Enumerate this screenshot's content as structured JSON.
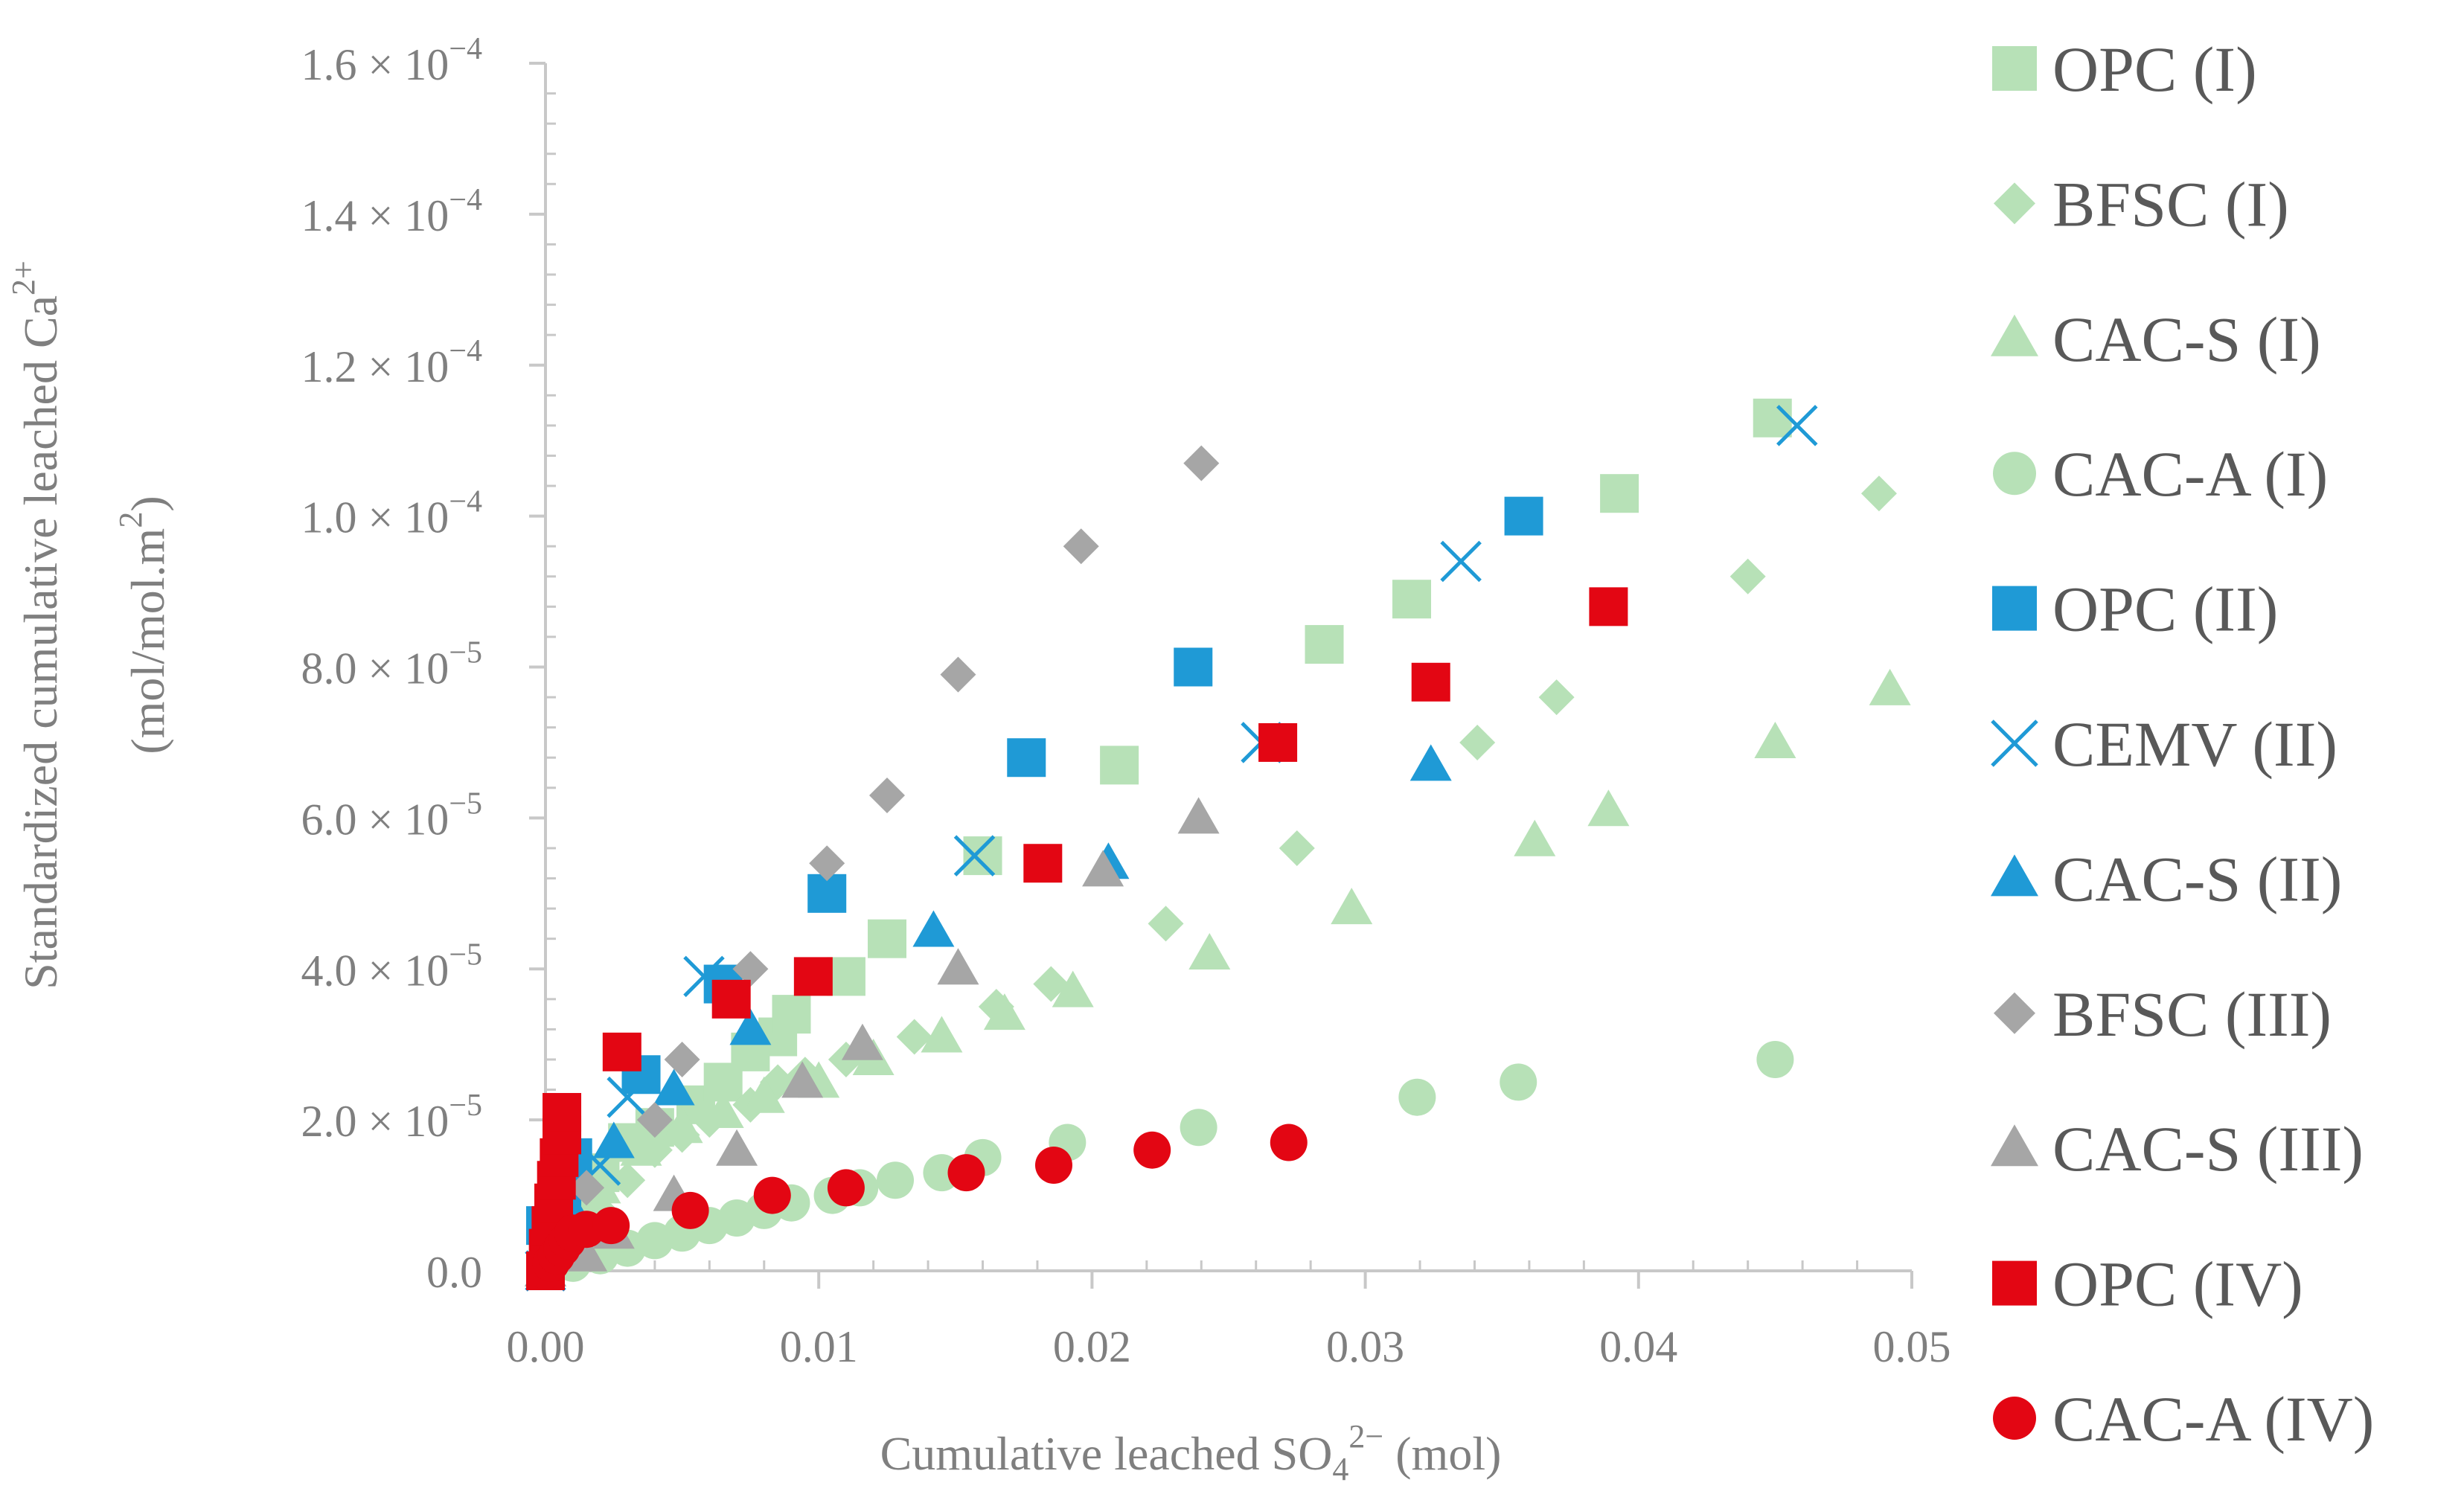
{
  "chart_data": {
    "type": "scatter",
    "title": "",
    "xlabel": "Cumulative leached SO4²⁻ (mol)",
    "xlabel_parts": {
      "main": "Cumulative leached SO",
      "sub": "4",
      "sup": "2−",
      "tail": " (mol)"
    },
    "ylabel_line1": "Standardized cumulative leached Ca²⁺",
    "ylabel_line1_parts": {
      "main": "Standardized cumulative leached Ca",
      "sup": "2+"
    },
    "ylabel_line2": "(mol/mol.m²)",
    "ylabel_line2_parts": {
      "main": "(mol/mol.m",
      "sup": "2",
      "tail": ")"
    },
    "xlim": [
      0,
      0.05
    ],
    "ylim": [
      0,
      0.00016
    ],
    "x_ticks": [
      {
        "value": 0.0,
        "label": "0.00"
      },
      {
        "value": 0.01,
        "label": "0.01"
      },
      {
        "value": 0.02,
        "label": "0.02"
      },
      {
        "value": 0.03,
        "label": "0.03"
      },
      {
        "value": 0.04,
        "label": "0.04"
      },
      {
        "value": 0.05,
        "label": "0.05"
      }
    ],
    "y_ticks": [
      {
        "value": 0,
        "mantissa": "0.0",
        "exp": ""
      },
      {
        "value": 2e-05,
        "mantissa": "2.0 × 10",
        "exp": "−5"
      },
      {
        "value": 4e-05,
        "mantissa": "4.0 × 10",
        "exp": "−5"
      },
      {
        "value": 6e-05,
        "mantissa": "6.0 × 10",
        "exp": "−5"
      },
      {
        "value": 8e-05,
        "mantissa": "8.0 × 10",
        "exp": "−5"
      },
      {
        "value": 0.0001,
        "mantissa": "1.0 × 10",
        "exp": "−4"
      },
      {
        "value": 0.00012,
        "mantissa": "1.2 × 10",
        "exp": "−4"
      },
      {
        "value": 0.00014,
        "mantissa": "1.4 × 10",
        "exp": "−4"
      },
      {
        "value": 0.00016,
        "mantissa": "1.6 × 10",
        "exp": "−4"
      }
    ],
    "grid": false,
    "legend_position": "right",
    "series": [
      {
        "name": "OPC (I)",
        "marker": "square",
        "color": "#b7e1b7",
        "points": [
          [
            0,
            0
          ],
          [
            0.0003,
            4e-06
          ],
          [
            0.001,
            8e-06
          ],
          [
            0.002,
            1.3e-05
          ],
          [
            0.003,
            1.7e-05
          ],
          [
            0.004,
            1.9e-05
          ],
          [
            0.0055,
            2.2e-05
          ],
          [
            0.0065,
            2.5e-05
          ],
          [
            0.0075,
            2.9e-05
          ],
          [
            0.0085,
            3.1e-05
          ],
          [
            0.009,
            3.4e-05
          ],
          [
            0.011,
            3.9e-05
          ],
          [
            0.0125,
            4.4e-05
          ],
          [
            0.016,
            5.5e-05
          ],
          [
            0.021,
            6.7e-05
          ],
          [
            0.0285,
            8.3e-05
          ],
          [
            0.0317,
            8.9e-05
          ],
          [
            0.0393,
            0.000103
          ],
          [
            0.0449,
            0.000113
          ]
        ]
      },
      {
        "name": "BFSC (I)",
        "marker": "diamond",
        "color": "#b7e1b7",
        "points": [
          [
            0,
            0
          ],
          [
            0.001,
            4e-06
          ],
          [
            0.002,
            8e-06
          ],
          [
            0.003,
            1.2e-05
          ],
          [
            0.004,
            1.6e-05
          ],
          [
            0.005,
            1.8e-05
          ],
          [
            0.006,
            2e-05
          ],
          [
            0.0075,
            2.2e-05
          ],
          [
            0.0085,
            2.5e-05
          ],
          [
            0.0095,
            2.6e-05
          ],
          [
            0.011,
            2.8e-05
          ],
          [
            0.0135,
            3.1e-05
          ],
          [
            0.0165,
            3.5e-05
          ],
          [
            0.0185,
            3.8e-05
          ],
          [
            0.0227,
            4.6e-05
          ],
          [
            0.0275,
            5.6e-05
          ],
          [
            0.0341,
            7e-05
          ],
          [
            0.037,
            7.6e-05
          ],
          [
            0.044,
            9.2e-05
          ],
          [
            0.0488,
            0.000103
          ]
        ]
      },
      {
        "name": "CAC-S (I)",
        "marker": "triangle",
        "color": "#b7e1b7",
        "points": [
          [
            0,
            0
          ],
          [
            0.001,
            6e-06
          ],
          [
            0.002,
            1.1e-05
          ],
          [
            0.0035,
            1.6e-05
          ],
          [
            0.005,
            1.9e-05
          ],
          [
            0.0065,
            2.1e-05
          ],
          [
            0.008,
            2.3e-05
          ],
          [
            0.01,
            2.5e-05
          ],
          [
            0.012,
            2.8e-05
          ],
          [
            0.0145,
            3.1e-05
          ],
          [
            0.0168,
            3.4e-05
          ],
          [
            0.0193,
            3.7e-05
          ],
          [
            0.0243,
            4.2e-05
          ],
          [
            0.0295,
            4.8e-05
          ],
          [
            0.0362,
            5.7e-05
          ],
          [
            0.0389,
            6.1e-05
          ],
          [
            0.045,
            7e-05
          ],
          [
            0.0492,
            7.7e-05
          ]
        ]
      },
      {
        "name": "CAC-A (I)",
        "marker": "circle",
        "color": "#b7e1b7",
        "points": [
          [
            0,
            0
          ],
          [
            0.001,
            1e-06
          ],
          [
            0.002,
            2e-06
          ],
          [
            0.003,
            3e-06
          ],
          [
            0.004,
            4e-06
          ],
          [
            0.005,
            5e-06
          ],
          [
            0.006,
            6e-06
          ],
          [
            0.007,
            7e-06
          ],
          [
            0.008,
            8e-06
          ],
          [
            0.009,
            9e-06
          ],
          [
            0.0105,
            1e-05
          ],
          [
            0.0115,
            1.1e-05
          ],
          [
            0.0128,
            1.2e-05
          ],
          [
            0.0145,
            1.3e-05
          ],
          [
            0.016,
            1.5e-05
          ],
          [
            0.0191,
            1.7e-05
          ],
          [
            0.0239,
            1.9e-05
          ],
          [
            0.0319,
            2.3e-05
          ],
          [
            0.0356,
            2.5e-05
          ],
          [
            0.045,
            2.8e-05
          ]
        ]
      },
      {
        "name": "OPC (II)",
        "marker": "square",
        "color": "#1f9ad6",
        "points": [
          [
            0,
            6e-06
          ],
          [
            0.0003,
            8e-06
          ],
          [
            0.0006,
            1.1e-05
          ],
          [
            0.001,
            1.5e-05
          ],
          [
            0.0035,
            2.6e-05
          ],
          [
            0.0065,
            3.8e-05
          ],
          [
            0.0103,
            5e-05
          ],
          [
            0.0176,
            6.8e-05
          ],
          [
            0.0237,
            8e-05
          ],
          [
            0.0358,
            0.0001
          ]
        ]
      },
      {
        "name": "CEMV (II)",
        "marker": "x",
        "color": "#1f9ad6",
        "points": [
          [
            0,
            0
          ],
          [
            0.0003,
            3e-06
          ],
          [
            0.0008,
            8e-06
          ],
          [
            0.002,
            1.4e-05
          ],
          [
            0.003,
            2.3e-05
          ],
          [
            0.0058,
            3.9e-05
          ],
          [
            0.0157,
            5.5e-05
          ],
          [
            0.0262,
            7e-05
          ],
          [
            0.0335,
            9.4e-05
          ],
          [
            0.0458,
            0.000112
          ]
        ]
      },
      {
        "name": "CAC-S (II)",
        "marker": "triangle",
        "color": "#1f9ad6",
        "points": [
          [
            0,
            0
          ],
          [
            0.0008,
            9e-06
          ],
          [
            0.0025,
            1.7e-05
          ],
          [
            0.0047,
            2.4e-05
          ],
          [
            0.0075,
            3.2e-05
          ],
          [
            0.0142,
            4.5e-05
          ],
          [
            0.0206,
            5.4e-05
          ],
          [
            0.0324,
            6.7e-05
          ]
        ]
      },
      {
        "name": "BFSC (III)",
        "marker": "diamond",
        "color": "#a6a6a6",
        "points": [
          [
            0,
            0
          ],
          [
            0.0005,
            5e-06
          ],
          [
            0.0015,
            1.1e-05
          ],
          [
            0.004,
            2e-05
          ],
          [
            0.005,
            2.8e-05
          ],
          [
            0.0075,
            4e-05
          ],
          [
            0.0103,
            5.4e-05
          ],
          [
            0.0125,
            6.3e-05
          ],
          [
            0.0151,
            7.9e-05
          ],
          [
            0.0196,
            9.6e-05
          ],
          [
            0.024,
            0.000107
          ]
        ]
      },
      {
        "name": "CAC-S (III)",
        "marker": "triangle",
        "color": "#a6a6a6",
        "points": [
          [
            0,
            0
          ],
          [
            0.0015,
            2e-06
          ],
          [
            0.0025,
            5e-06
          ],
          [
            0.0047,
            1e-05
          ],
          [
            0.007,
            1.6e-05
          ],
          [
            0.0094,
            2.5e-05
          ],
          [
            0.0116,
            3e-05
          ],
          [
            0.0151,
            4e-05
          ],
          [
            0.0204,
            5.3e-05
          ],
          [
            0.0239,
            6e-05
          ]
        ]
      },
      {
        "name": "OPC (IV)",
        "marker": "square",
        "color": "#e30613",
        "points": [
          [
            0,
            0
          ],
          [
            0.0001,
            3e-06
          ],
          [
            0.0002,
            6e-06
          ],
          [
            0.0003,
            9e-06
          ],
          [
            0.0004,
            1.2e-05
          ],
          [
            0.0005,
            1.5e-05
          ],
          [
            0.0006,
            1.8e-05
          ],
          [
            0.0006,
            2.1e-05
          ],
          [
            0.0028,
            2.9e-05
          ],
          [
            0.0068,
            3.6e-05
          ],
          [
            0.0098,
            3.9e-05
          ],
          [
            0.0182,
            5.4e-05
          ],
          [
            0.0268,
            7e-05
          ],
          [
            0.0324,
            7.8e-05
          ],
          [
            0.0389,
            8.8e-05
          ]
        ]
      },
      {
        "name": "CAC-A (IV)",
        "marker": "circle",
        "color": "#e30613",
        "points": [
          [
            0,
            0
          ],
          [
            0.0002,
            1e-06
          ],
          [
            0.0004,
            2e-06
          ],
          [
            0.0006,
            3e-06
          ],
          [
            0.0008,
            4e-06
          ],
          [
            0.001,
            5e-06
          ],
          [
            0.0015,
            5.5e-06
          ],
          [
            0.0024,
            6e-06
          ],
          [
            0.0053,
            8e-06
          ],
          [
            0.0083,
            1e-05
          ],
          [
            0.011,
            1.1e-05
          ],
          [
            0.0154,
            1.3e-05
          ],
          [
            0.0186,
            1.4e-05
          ],
          [
            0.0222,
            1.6e-05
          ],
          [
            0.0272,
            1.7e-05
          ]
        ]
      }
    ]
  }
}
